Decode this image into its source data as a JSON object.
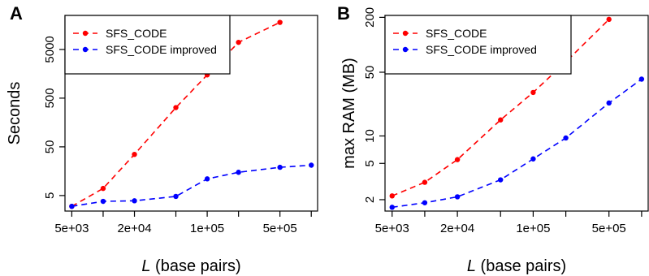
{
  "chart_data": [
    {
      "panel": "A",
      "type": "line",
      "xscale": "log",
      "yscale": "log",
      "xlabel": {
        "symbol": "L",
        "rest": " (base pairs)"
      },
      "ylabel": "Seconds",
      "xlim": [
        5000,
        1000000
      ],
      "ylim": [
        2.4,
        25000
      ],
      "xticks": [
        {
          "value": 5000,
          "label": "5e+03"
        },
        {
          "value": 10000,
          "label": ""
        },
        {
          "value": 20000,
          "label": "2e+04"
        },
        {
          "value": 50000,
          "label": ""
        },
        {
          "value": 100000,
          "label": "1e+05"
        },
        {
          "value": 200000,
          "label": ""
        },
        {
          "value": 500000,
          "label": "5e+05"
        },
        {
          "value": 1000000,
          "label": ""
        }
      ],
      "yticks": [
        {
          "value": 5,
          "label": "5"
        },
        {
          "value": 50,
          "label": "50"
        },
        {
          "value": 500,
          "label": "500"
        },
        {
          "value": 5000,
          "label": "5000"
        }
      ],
      "legend": "top-left",
      "series": [
        {
          "name": "SFS_CODE",
          "color": "#ff0000",
          "x": [
            5000,
            10000,
            20000,
            50000,
            100000,
            200000,
            500000
          ],
          "y": [
            3,
            7,
            35,
            320,
            1500,
            7000,
            18000
          ]
        },
        {
          "name": "SFS_CODE improved",
          "color": "#0000ff",
          "x": [
            5000,
            10000,
            20000,
            50000,
            100000,
            200000,
            500000,
            1000000
          ],
          "y": [
            3,
            3.8,
            3.9,
            4.8,
            11,
            15,
            19,
            21
          ]
        }
      ]
    },
    {
      "panel": "B",
      "type": "line",
      "xscale": "log",
      "yscale": "log",
      "xlabel": {
        "symbol": "L",
        "rest": " (base pairs)"
      },
      "ylabel": "max RAM (MB)",
      "xlim": [
        5000,
        1000000
      ],
      "ylim": [
        1.5,
        210
      ],
      "xticks": [
        {
          "value": 5000,
          "label": "5e+03"
        },
        {
          "value": 10000,
          "label": ""
        },
        {
          "value": 20000,
          "label": "2e+04"
        },
        {
          "value": 50000,
          "label": ""
        },
        {
          "value": 100000,
          "label": "1e+05"
        },
        {
          "value": 200000,
          "label": ""
        },
        {
          "value": 500000,
          "label": "5e+05"
        },
        {
          "value": 1000000,
          "label": ""
        }
      ],
      "yticks": [
        {
          "value": 2,
          "label": "2"
        },
        {
          "value": 5,
          "label": "5"
        },
        {
          "value": 10,
          "label": "10"
        },
        {
          "value": 50,
          "label": "50"
        },
        {
          "value": 200,
          "label": "200"
        }
      ],
      "legend": "top-left",
      "series": [
        {
          "name": "SFS_CODE",
          "color": "#ff0000",
          "x": [
            5000,
            10000,
            20000,
            50000,
            100000,
            200000,
            500000
          ],
          "y": [
            2.2,
            3.1,
            5.5,
            15,
            30,
            65,
            190
          ]
        },
        {
          "name": "SFS_CODE improved",
          "color": "#0000ff",
          "x": [
            5000,
            10000,
            20000,
            50000,
            100000,
            200000,
            500000,
            1000000
          ],
          "y": [
            1.65,
            1.85,
            2.15,
            3.3,
            5.6,
            9.5,
            23,
            42
          ]
        }
      ]
    }
  ]
}
